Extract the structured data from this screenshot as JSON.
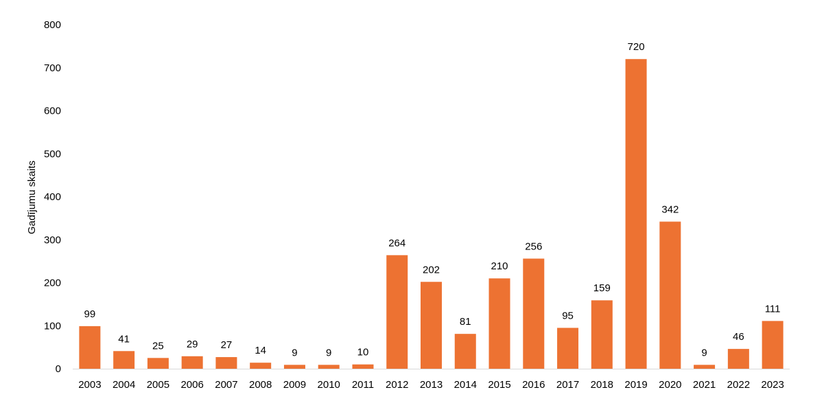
{
  "chart_data": {
    "type": "bar",
    "title": "",
    "xlabel": "",
    "ylabel": "Gadījumu skaits",
    "ylim": [
      0,
      800
    ],
    "yticks": [
      0,
      100,
      200,
      300,
      400,
      500,
      600,
      700,
      800
    ],
    "grid": false,
    "bar_color": "#ED7232",
    "categories": [
      "2003",
      "2004",
      "2005",
      "2006",
      "2007",
      "2008",
      "2009",
      "2010",
      "2011",
      "2012",
      "2013",
      "2014",
      "2015",
      "2016",
      "2017",
      "2018",
      "2019",
      "2020",
      "2021",
      "2022",
      "2023"
    ],
    "values": [
      99,
      41,
      25,
      29,
      27,
      14,
      9,
      9,
      10,
      264,
      202,
      81,
      210,
      256,
      95,
      159,
      720,
      342,
      9,
      46,
      111
    ]
  }
}
